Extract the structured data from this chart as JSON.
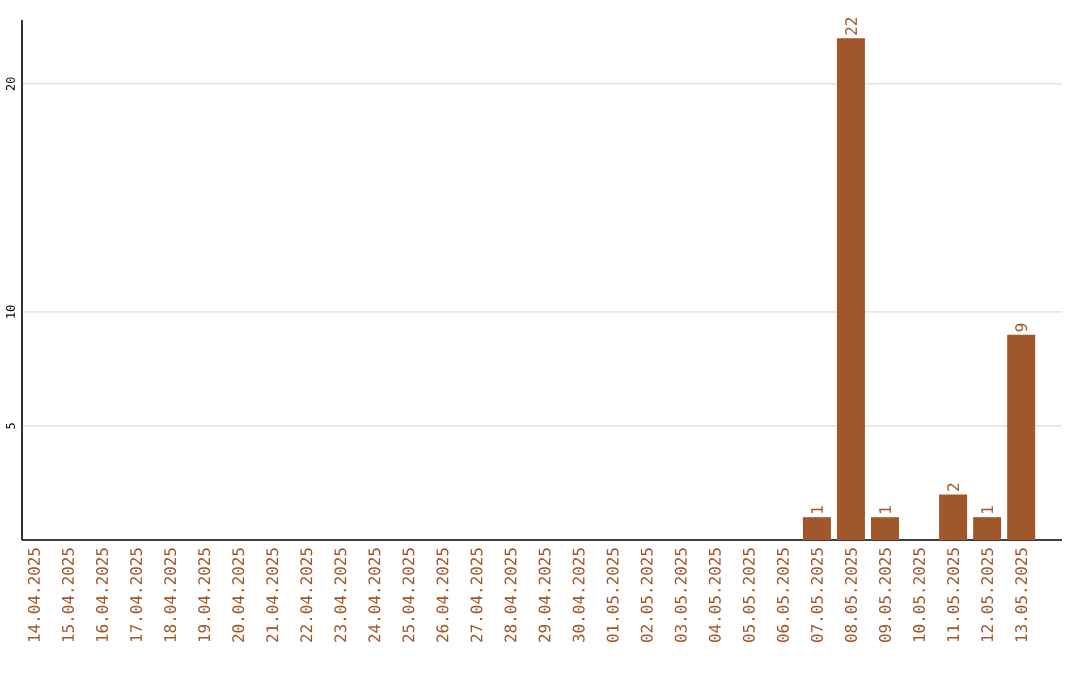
{
  "chart_data": {
    "type": "bar",
    "categories": [
      "14.04.2025",
      "15.04.2025",
      "16.04.2025",
      "17.04.2025",
      "18.04.2025",
      "19.04.2025",
      "20.04.2025",
      "21.04.2025",
      "22.04.2025",
      "23.04.2025",
      "24.04.2025",
      "25.04.2025",
      "26.04.2025",
      "27.04.2025",
      "28.04.2025",
      "29.04.2025",
      "30.04.2025",
      "01.05.2025",
      "02.05.2025",
      "03.05.2025",
      "04.05.2025",
      "05.05.2025",
      "06.05.2025",
      "07.05.2025",
      "08.05.2025",
      "09.05.2025",
      "10.05.2025",
      "11.05.2025",
      "12.05.2025",
      "13.05.2025"
    ],
    "values": [
      0,
      0,
      0,
      0,
      0,
      0,
      0,
      0,
      0,
      0,
      0,
      0,
      0,
      0,
      0,
      0,
      0,
      0,
      0,
      0,
      0,
      0,
      0,
      1,
      22,
      1,
      0,
      2,
      1,
      9
    ],
    "value_labels": [
      null,
      null,
      null,
      null,
      null,
      null,
      null,
      null,
      null,
      null,
      null,
      null,
      null,
      null,
      null,
      null,
      null,
      null,
      null,
      null,
      null,
      null,
      null,
      "1",
      "22",
      "1",
      null,
      "2",
      "1",
      "9"
    ],
    "color": "#a0582a",
    "ylim": [
      0,
      22.8
    ],
    "yticks": [
      5,
      10,
      20
    ],
    "grid": "y"
  }
}
